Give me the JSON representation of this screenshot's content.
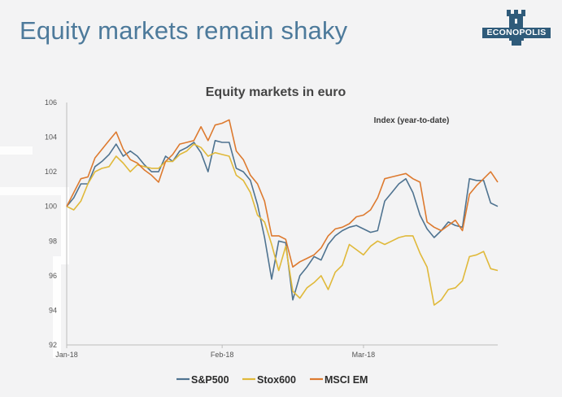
{
  "slide": {
    "title": "Equity markets remain shaky"
  },
  "logo": {
    "text": "ECONOPOLIS",
    "color": "#2f5b7a"
  },
  "chart_data": {
    "type": "line",
    "title": "Equity markets in euro",
    "annotation": "Index (year-to-date)",
    "xlabel": "",
    "ylabel": "",
    "ylim": [
      92,
      106
    ],
    "yticks": [
      92,
      94,
      96,
      98,
      100,
      102,
      104,
      106
    ],
    "xticks": [
      {
        "label": "Jan-18",
        "x": 0
      },
      {
        "label": "Feb-18",
        "x": 22
      },
      {
        "label": "Mar-18",
        "x": 42
      }
    ],
    "legend_position": "bottom",
    "grid": false,
    "series": [
      {
        "name": "S&P500",
        "color": "#4f7390",
        "x": [
          0,
          1,
          2,
          3,
          4,
          5,
          6,
          7,
          8,
          9,
          10,
          11,
          12,
          13,
          14,
          15,
          16,
          17,
          18,
          19,
          20,
          21,
          22,
          23,
          24,
          25,
          26,
          27,
          28,
          29,
          30,
          31,
          32,
          33,
          34,
          35,
          36,
          37,
          38,
          39,
          40,
          41,
          42,
          43,
          44,
          45,
          46,
          47,
          48,
          49,
          50,
          51,
          52,
          53,
          54,
          55,
          56,
          57,
          58,
          59,
          60,
          61
        ],
        "values": [
          100.0,
          100.5,
          101.3,
          101.3,
          102.3,
          102.6,
          103.0,
          103.6,
          102.9,
          103.2,
          102.9,
          102.4,
          102.0,
          102.0,
          102.9,
          102.6,
          103.2,
          103.4,
          103.7,
          103.1,
          102.0,
          103.8,
          103.7,
          103.7,
          102.2,
          102.0,
          101.5,
          100.1,
          98.2,
          95.8,
          98.0,
          97.9,
          94.6,
          96.0,
          96.5,
          97.1,
          96.9,
          97.8,
          98.3,
          98.6,
          98.8,
          98.9,
          98.7,
          98.5,
          98.6,
          100.3,
          100.8,
          101.3,
          101.6,
          100.8,
          99.5,
          98.7,
          98.2,
          98.6,
          99.1,
          98.9,
          98.8,
          101.6,
          101.5,
          101.5,
          100.2,
          100.0
        ]
      },
      {
        "name": "Stox600",
        "color": "#e0b93a",
        "x": [
          0,
          1,
          2,
          3,
          4,
          5,
          6,
          7,
          8,
          9,
          10,
          11,
          12,
          13,
          14,
          15,
          16,
          17,
          18,
          19,
          20,
          21,
          22,
          23,
          24,
          25,
          26,
          27,
          28,
          29,
          30,
          31,
          32,
          33,
          34,
          35,
          36,
          37,
          38,
          39,
          40,
          41,
          42,
          43,
          44,
          45,
          46,
          47,
          48,
          49,
          50,
          51,
          52,
          53,
          54,
          55,
          56,
          57,
          58,
          59,
          60,
          61
        ],
        "values": [
          100.0,
          99.8,
          100.3,
          101.3,
          102.0,
          102.2,
          102.3,
          102.9,
          102.5,
          102.0,
          102.4,
          102.3,
          102.2,
          102.2,
          102.6,
          102.6,
          103.0,
          103.2,
          103.6,
          103.4,
          102.9,
          103.1,
          103.0,
          102.9,
          101.8,
          101.5,
          100.8,
          99.5,
          99.1,
          97.8,
          96.3,
          97.7,
          95.1,
          94.7,
          95.3,
          95.6,
          96.0,
          95.2,
          96.2,
          96.6,
          97.8,
          97.5,
          97.2,
          97.7,
          98.0,
          97.8,
          98.0,
          98.2,
          98.3,
          98.3,
          97.3,
          96.5,
          94.3,
          94.6,
          95.2,
          95.3,
          95.7,
          97.1,
          97.2,
          97.4,
          96.4,
          96.3
        ]
      },
      {
        "name": "MSCI EM",
        "color": "#dd7a2f",
        "x": [
          0,
          1,
          2,
          3,
          4,
          5,
          6,
          7,
          8,
          9,
          10,
          11,
          12,
          13,
          14,
          15,
          16,
          17,
          18,
          19,
          20,
          21,
          22,
          23,
          24,
          25,
          26,
          27,
          28,
          29,
          30,
          31,
          32,
          33,
          34,
          35,
          36,
          37,
          38,
          39,
          40,
          41,
          42,
          43,
          44,
          45,
          46,
          47,
          48,
          49,
          50,
          51,
          52,
          53,
          54,
          55,
          56,
          57,
          58,
          59,
          60,
          61
        ],
        "values": [
          100.0,
          100.8,
          101.6,
          101.7,
          102.8,
          103.3,
          103.8,
          104.3,
          103.3,
          102.7,
          102.5,
          102.1,
          101.8,
          101.4,
          102.6,
          103.0,
          103.6,
          103.7,
          103.8,
          104.6,
          103.8,
          104.7,
          104.8,
          105.0,
          103.2,
          102.7,
          101.8,
          101.3,
          100.3,
          98.3,
          98.3,
          98.1,
          96.5,
          96.8,
          97.0,
          97.2,
          97.6,
          98.3,
          98.7,
          98.8,
          99.0,
          99.4,
          99.5,
          99.8,
          100.5,
          101.6,
          101.7,
          101.8,
          101.9,
          101.6,
          101.4,
          99.1,
          98.8,
          98.6,
          98.9,
          99.2,
          98.6,
          100.7,
          101.2,
          101.6,
          102.0,
          101.4
        ]
      }
    ]
  }
}
